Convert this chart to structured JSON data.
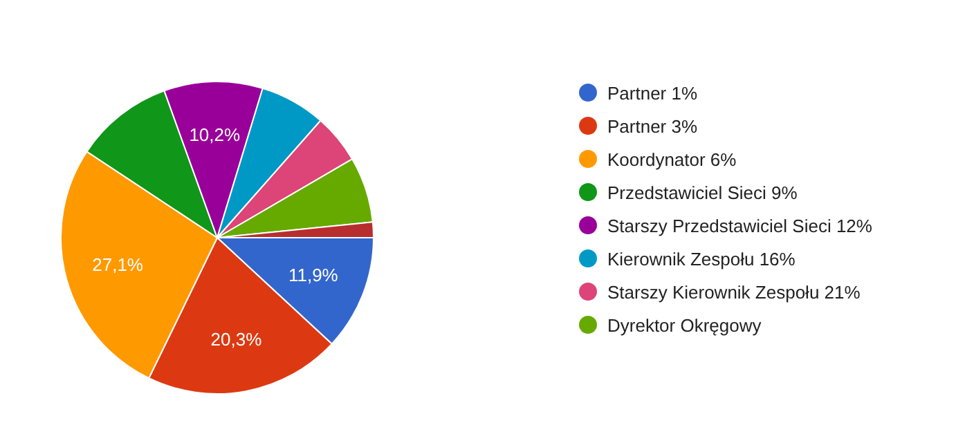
{
  "chart_data": {
    "type": "pie",
    "categories": [
      "Partner 1%",
      "Partner 3%",
      "Koordynator 6%",
      "Przedstawiciel Sieci 9%",
      "Starszy Przedstawiciel Sieci 12%",
      "Kierownik Zespołu 16%",
      "Starszy Kierownik Zespołu 21%",
      "Dyrektor Okręgowy",
      null
    ],
    "values": [
      11.9,
      20.3,
      27.1,
      10.2,
      10.2,
      6.8,
      5.1,
      6.8,
      1.6
    ],
    "colors": [
      "#3366cc",
      "#dc3912",
      "#ff9900",
      "#109618",
      "#990099",
      "#0099c6",
      "#dd4477",
      "#66aa00",
      "#b82e2e"
    ],
    "value_labels": [
      "11,9%",
      "20,3%",
      "27,1%",
      null,
      "10,2%",
      null,
      null,
      null,
      null
    ],
    "legend": "right"
  }
}
